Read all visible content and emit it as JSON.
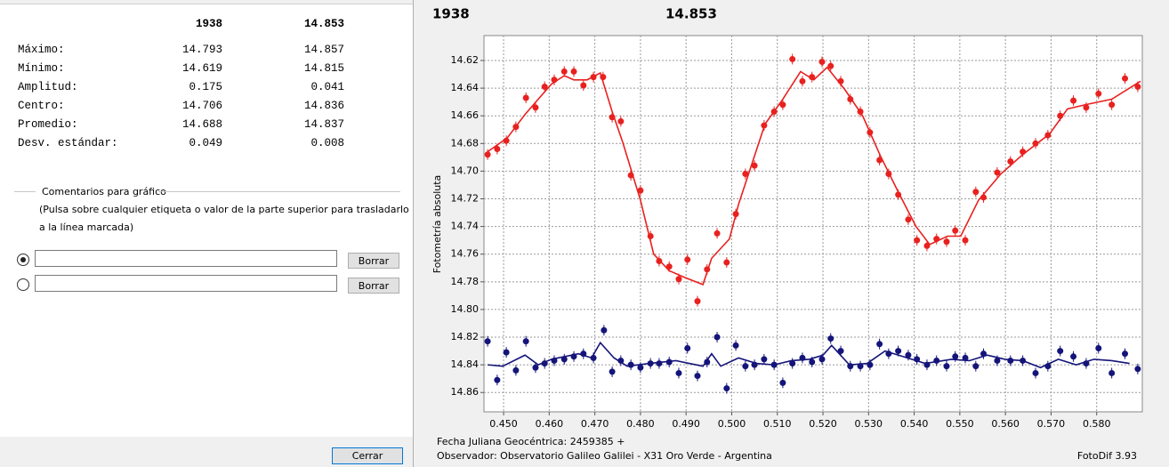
{
  "panel": {
    "columns": [
      "1938",
      "14.853"
    ],
    "rows": [
      {
        "label": "Máximo:",
        "values": [
          "14.793",
          "14.857"
        ]
      },
      {
        "label": "Mínimo:",
        "values": [
          "14.619",
          "14.815"
        ]
      },
      {
        "label": "Amplitud:",
        "values": [
          "0.175",
          "0.041"
        ]
      },
      {
        "label": "Centro:",
        "values": [
          "14.706",
          "14.836"
        ]
      },
      {
        "label": "Promedio:",
        "values": [
          "14.688",
          "14.837"
        ]
      },
      {
        "label": "Desv. estándar:",
        "values": [
          "0.049",
          "0.008"
        ]
      }
    ],
    "comments_title": "Comentarios para gráfico",
    "comments_hint": [
      "(Pulsa sobre cualquier etiqueta o valor de la parte superior para trasladarlo",
      "a la línea marcada)"
    ],
    "clear_button": "Borrar",
    "close_button": "Cerrar"
  },
  "chart_data": {
    "type": "scatter",
    "y_axis_label": "Fotometría absoluta",
    "footer": {
      "date": "Fecha Juliana Geocéntrica: 2459385 +",
      "observer": "Observador: Observatorio Galileo Galilei - X31 Oro Verde - Argentina",
      "software": "FotoDif 3.93"
    },
    "xlim": [
      0.4457,
      0.59
    ],
    "ylim": [
      14.602,
      14.874
    ],
    "y_inverted": true,
    "grid": true,
    "xticks": [
      {
        "value": 0.45,
        "label": "0.450"
      },
      {
        "value": 0.46,
        "label": "0.460"
      },
      {
        "value": 0.47,
        "label": "0.470"
      },
      {
        "value": 0.48,
        "label": "0.480"
      },
      {
        "value": 0.49,
        "label": "0.490"
      },
      {
        "value": 0.5,
        "label": "0.500"
      },
      {
        "value": 0.51,
        "label": "0.510"
      },
      {
        "value": 0.52,
        "label": "0.520"
      },
      {
        "value": 0.53,
        "label": "0.530"
      },
      {
        "value": 0.54,
        "label": "0.540"
      },
      {
        "value": 0.55,
        "label": "0.550"
      },
      {
        "value": 0.56,
        "label": "0.560"
      },
      {
        "value": 0.57,
        "label": "0.570"
      },
      {
        "value": 0.58,
        "label": "0.580"
      }
    ],
    "yticks": [
      {
        "value": 14.62,
        "label": "14.62"
      },
      {
        "value": 14.64,
        "label": "14.64"
      },
      {
        "value": 14.66,
        "label": "14.66"
      },
      {
        "value": 14.68,
        "label": "14.68"
      },
      {
        "value": 14.7,
        "label": "14.70"
      },
      {
        "value": 14.72,
        "label": "14.72"
      },
      {
        "value": 14.74,
        "label": "14.74"
      },
      {
        "value": 14.76,
        "label": "14.76"
      },
      {
        "value": 14.78,
        "label": "14.78"
      },
      {
        "value": 14.8,
        "label": "14.80"
      },
      {
        "value": 14.82,
        "label": "14.82"
      },
      {
        "value": 14.84,
        "label": "14.84"
      },
      {
        "value": 14.86,
        "label": "14.86"
      }
    ],
    "series": [
      {
        "name": "1938",
        "color": "#e8211f",
        "x": [
          0.4465,
          0.4486,
          0.4506,
          0.4527,
          0.4549,
          0.457,
          0.459,
          0.4611,
          0.4633,
          0.4654,
          0.4675,
          0.4697,
          0.4718,
          0.4738,
          0.4757,
          0.4779,
          0.48,
          0.4822,
          0.4841,
          0.4863,
          0.4884,
          0.4903,
          0.4925,
          0.4946,
          0.4968,
          0.4989,
          0.5009,
          0.503,
          0.505,
          0.5071,
          0.5093,
          0.5112,
          0.5133,
          0.5155,
          0.5176,
          0.5198,
          0.5217,
          0.5239,
          0.526,
          0.5282,
          0.5303,
          0.5324,
          0.5344,
          0.5365,
          0.5387,
          0.5406,
          0.5428,
          0.5449,
          0.5471,
          0.549,
          0.5512,
          0.5535,
          0.5552,
          0.5582,
          0.5611,
          0.5638,
          0.5666,
          0.5693,
          0.572,
          0.5749,
          0.5777,
          0.5804,
          0.5833,
          0.5862,
          0.589
        ],
        "values": [
          14.688,
          14.684,
          14.678,
          14.668,
          14.647,
          14.654,
          14.639,
          14.634,
          14.628,
          14.628,
          14.638,
          14.632,
          14.632,
          14.661,
          14.664,
          14.703,
          14.714,
          14.747,
          14.765,
          14.769,
          14.778,
          14.764,
          14.794,
          14.771,
          14.745,
          14.766,
          14.731,
          14.702,
          14.696,
          14.667,
          14.657,
          14.652,
          14.619,
          14.635,
          14.632,
          14.621,
          14.624,
          14.635,
          14.648,
          14.657,
          14.672,
          14.692,
          14.702,
          14.717,
          14.735,
          14.75,
          14.754,
          14.749,
          14.751,
          14.743,
          14.75,
          14.715,
          14.719,
          14.701,
          14.693,
          14.686,
          14.68,
          14.674,
          14.66,
          14.649,
          14.654,
          14.644,
          14.652,
          14.633,
          14.639
        ],
        "fit": {
          "x": [
            0.4465,
            0.4508,
            0.4547,
            0.4576,
            0.4605,
            0.4633,
            0.4654,
            0.4683,
            0.4712,
            0.4738,
            0.4761,
            0.48,
            0.4829,
            0.4863,
            0.4898,
            0.4937,
            0.4956,
            0.4995,
            0.5015,
            0.5044,
            0.5073,
            0.5112,
            0.5151,
            0.518,
            0.5209,
            0.5248,
            0.5287,
            0.5326,
            0.5365,
            0.5404,
            0.5434,
            0.5473,
            0.5502,
            0.5541,
            0.559,
            0.5638,
            0.5697,
            0.5736,
            0.5775,
            0.5833,
            0.5896
          ],
          "values": [
            14.686,
            14.676,
            14.659,
            14.648,
            14.637,
            14.631,
            14.634,
            14.634,
            14.629,
            14.657,
            14.679,
            14.721,
            14.76,
            14.772,
            14.777,
            14.782,
            14.763,
            14.749,
            14.724,
            14.695,
            14.666,
            14.648,
            14.628,
            14.634,
            14.625,
            14.641,
            14.66,
            14.689,
            14.715,
            14.74,
            14.753,
            14.747,
            14.747,
            14.721,
            14.702,
            14.688,
            14.673,
            14.655,
            14.652,
            14.648,
            14.635
          ]
        }
      },
      {
        "name": "14.853",
        "color": "#14147a",
        "x": [
          0.4465,
          0.4486,
          0.4506,
          0.4527,
          0.4549,
          0.457,
          0.459,
          0.4611,
          0.4633,
          0.4654,
          0.4675,
          0.4697,
          0.472,
          0.4738,
          0.4757,
          0.4779,
          0.48,
          0.4822,
          0.4841,
          0.4863,
          0.4884,
          0.4903,
          0.4925,
          0.4946,
          0.4968,
          0.4989,
          0.5009,
          0.503,
          0.505,
          0.5071,
          0.5093,
          0.5112,
          0.5133,
          0.5155,
          0.5176,
          0.5198,
          0.5217,
          0.5239,
          0.526,
          0.5282,
          0.5303,
          0.5324,
          0.5344,
          0.5365,
          0.5387,
          0.5406,
          0.5428,
          0.5449,
          0.5471,
          0.549,
          0.5512,
          0.5535,
          0.5552,
          0.5582,
          0.5611,
          0.5638,
          0.5666,
          0.5693,
          0.572,
          0.5749,
          0.5777,
          0.5804,
          0.5833,
          0.5862,
          0.589
        ],
        "values": [
          14.823,
          14.851,
          14.831,
          14.844,
          14.823,
          14.842,
          14.839,
          14.837,
          14.836,
          14.834,
          14.832,
          14.835,
          14.815,
          14.845,
          14.837,
          14.84,
          14.842,
          14.839,
          14.839,
          14.838,
          14.846,
          14.828,
          14.848,
          14.838,
          14.82,
          14.857,
          14.826,
          14.841,
          14.84,
          14.836,
          14.84,
          14.853,
          14.839,
          14.835,
          14.838,
          14.836,
          14.821,
          14.83,
          14.841,
          14.841,
          14.84,
          14.825,
          14.832,
          14.83,
          14.833,
          14.836,
          14.84,
          14.837,
          14.841,
          14.834,
          14.835,
          14.841,
          14.832,
          14.837,
          14.837,
          14.837,
          14.846,
          14.841,
          14.83,
          14.834,
          14.839,
          14.828,
          14.846,
          14.832,
          14.843
        ],
        "fit": {
          "x": [
            0.4465,
            0.4498,
            0.4547,
            0.4576,
            0.4605,
            0.4664,
            0.4693,
            0.4712,
            0.4742,
            0.4771,
            0.482,
            0.4878,
            0.4907,
            0.4937,
            0.4956,
            0.4976,
            0.5015,
            0.5054,
            0.5093,
            0.5131,
            0.517,
            0.52,
            0.5219,
            0.5258,
            0.5297,
            0.5336,
            0.5385,
            0.5424,
            0.5482,
            0.5521,
            0.556,
            0.5599,
            0.5638,
            0.5677,
            0.5716,
            0.5755,
            0.5794,
            0.5833,
            0.5872
          ],
          "values": [
            14.84,
            14.841,
            14.833,
            14.84,
            14.836,
            14.832,
            14.835,
            14.824,
            14.835,
            14.841,
            14.839,
            14.837,
            14.839,
            14.841,
            14.832,
            14.841,
            14.835,
            14.839,
            14.84,
            14.837,
            14.836,
            14.833,
            14.826,
            14.84,
            14.839,
            14.83,
            14.835,
            14.839,
            14.836,
            14.837,
            14.833,
            14.836,
            14.837,
            14.842,
            14.836,
            14.84,
            14.836,
            14.837,
            14.839
          ]
        }
      }
    ]
  }
}
